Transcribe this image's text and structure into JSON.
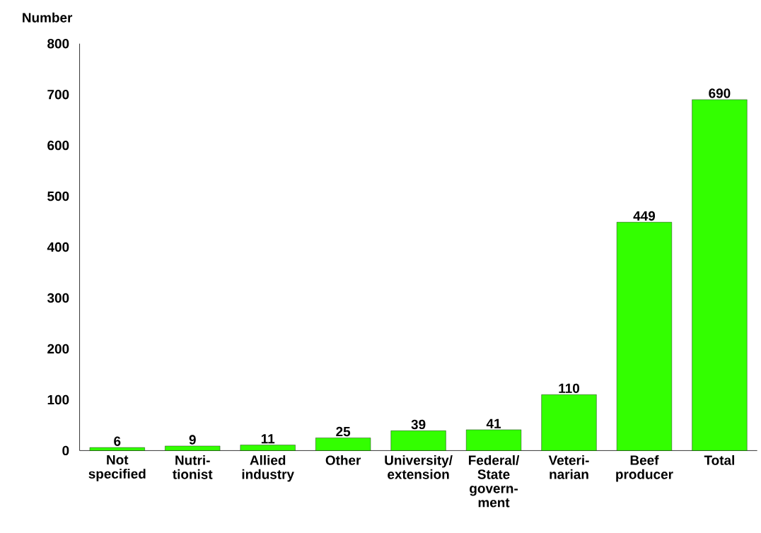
{
  "chart_data": {
    "type": "bar",
    "ylabel": "Number",
    "categories": [
      "Not specified",
      "Nutri-tionist",
      "Allied industry",
      "Other",
      "University/ extension",
      "Federal/ State govern-ment",
      "Veteri-narian",
      "Beef producer",
      "Total"
    ],
    "values": [
      6,
      9,
      11,
      25,
      39,
      41,
      110,
      449,
      690
    ],
    "color": "#33ff00",
    "ylim": [
      0,
      800
    ],
    "yticks": [
      0,
      100,
      200,
      300,
      400,
      500,
      600,
      700,
      800
    ],
    "data_labels": true,
    "grid": false
  }
}
